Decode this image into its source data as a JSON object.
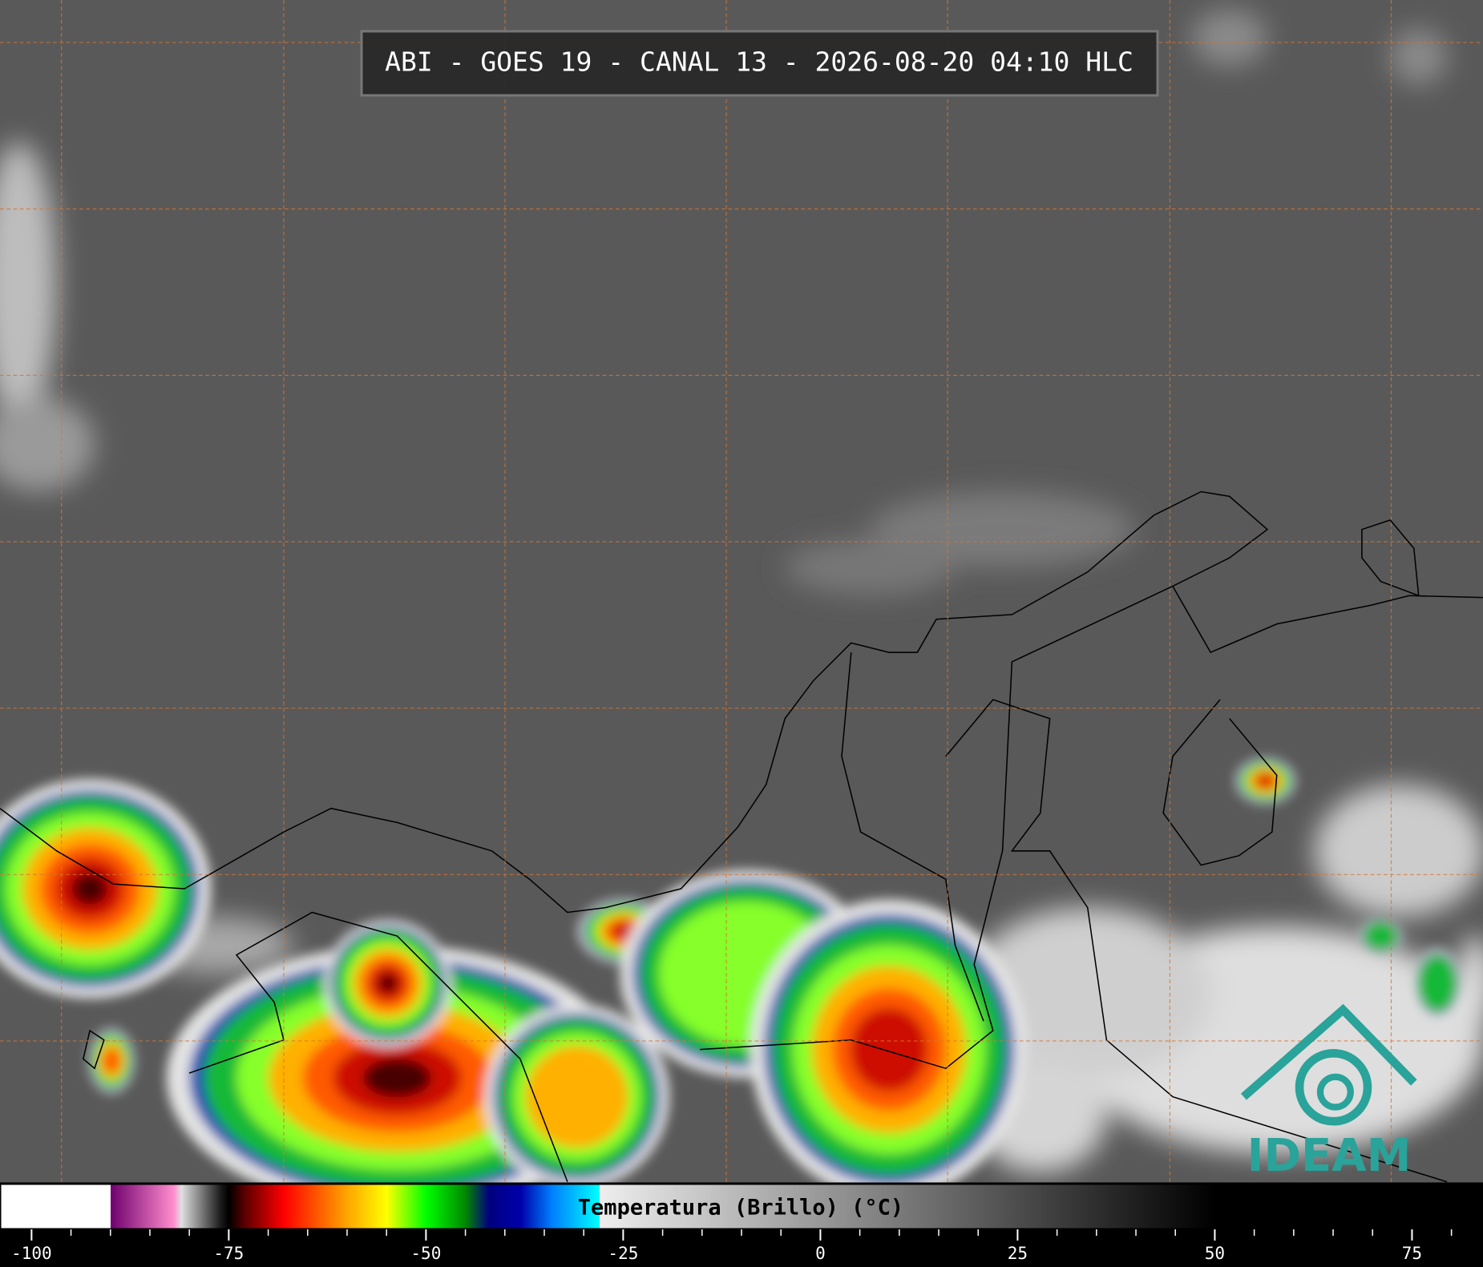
{
  "title": "ABI - GOES 19 - CANAL 13 - 2026-08-20 04:10 HLC",
  "colorbar": {
    "label": "Temperatura (Brillo) (°C)",
    "lim": [
      -104,
      84
    ],
    "ticks": [
      -100,
      -75,
      -50,
      -25,
      0,
      25,
      50,
      75
    ],
    "minor_ticks": [
      -95,
      -90,
      -85,
      -80,
      -70,
      -65,
      -60,
      -55,
      -45,
      -40,
      -35,
      -30,
      -20,
      -15,
      -10,
      -5,
      5,
      10,
      15,
      20,
      30,
      35,
      40,
      45,
      55,
      60,
      65,
      70,
      80
    ],
    "colormap": [
      [
        -104,
        "#ffffff"
      ],
      [
        -90,
        "#ffffff"
      ],
      [
        -90,
        "#6e006e"
      ],
      [
        -82,
        "#ff8ccc"
      ],
      [
        -81,
        "#e0e0e0"
      ],
      [
        -76,
        "#1a1a1a"
      ],
      [
        -75,
        "#000000"
      ],
      [
        -73,
        "#5a0000"
      ],
      [
        -68,
        "#ff0000"
      ],
      [
        -60,
        "#ffa500"
      ],
      [
        -55,
        "#ffff00"
      ],
      [
        -50,
        "#00ff00"
      ],
      [
        -45,
        "#008800"
      ],
      [
        -42,
        "#000080"
      ],
      [
        -38,
        "#0000aa"
      ],
      [
        -34,
        "#0080ff"
      ],
      [
        -28,
        "#00ffff"
      ],
      [
        -28,
        "#eeeeee"
      ],
      [
        50,
        "#000000"
      ],
      [
        84,
        "#000000"
      ]
    ]
  },
  "logo": {
    "text": "IDEAM"
  }
}
